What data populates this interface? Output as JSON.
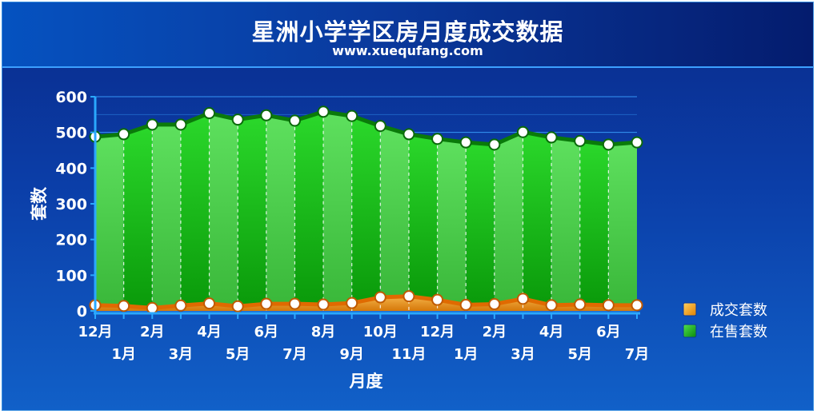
{
  "header": {
    "title": "星洲小学学区房月度成交数据",
    "subtitle": "www.xuequfang.com"
  },
  "chart_data": {
    "type": "area",
    "title": "星洲小学学区房月度成交数据",
    "subtitle": "www.xuequfang.com",
    "xlabel": "月度",
    "ylabel": "套数",
    "ylim": [
      0,
      600
    ],
    "yticks": [
      0,
      100,
      200,
      300,
      400,
      500,
      600
    ],
    "categories": [
      "12月",
      "1月",
      "2月",
      "3月",
      "4月",
      "5月",
      "6月",
      "7月",
      "8月",
      "9月",
      "10月",
      "11月",
      "12月",
      "1月",
      "2月",
      "3月",
      "4月",
      "5月",
      "6月",
      "7月"
    ],
    "series": [
      {
        "name": "成交套数",
        "color": "#f59a12",
        "values": [
          16,
          14,
          8,
          15,
          21,
          13,
          20,
          20,
          18,
          22,
          38,
          41,
          31,
          17,
          19,
          34,
          16,
          18,
          16,
          16
        ]
      },
      {
        "name": "在售套数",
        "color": "#1ec81e",
        "values": [
          488,
          495,
          522,
          522,
          554,
          536,
          548,
          533,
          558,
          546,
          518,
          495,
          482,
          472,
          466,
          501,
          486,
          476,
          466,
          472
        ]
      }
    ],
    "legend_position": "right",
    "grid": true
  }
}
